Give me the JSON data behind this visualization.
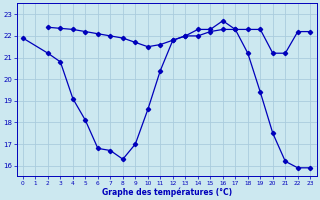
{
  "title": "Graphe des températures (°C)",
  "background_color": "#cce8f0",
  "grid_color": "#aaccdd",
  "line_color": "#0000bb",
  "xlim": [
    -0.5,
    23.5
  ],
  "ylim": [
    15.5,
    23.5
  ],
  "yticks": [
    16,
    17,
    18,
    19,
    20,
    21,
    22,
    23
  ],
  "xticks": [
    0,
    1,
    2,
    3,
    4,
    5,
    6,
    7,
    8,
    9,
    10,
    11,
    12,
    13,
    14,
    15,
    16,
    17,
    18,
    19,
    20,
    21,
    22,
    23
  ],
  "series1_x": [
    0,
    2,
    3,
    4,
    5,
    6,
    7,
    8,
    9,
    10,
    11,
    12,
    13,
    14,
    15,
    16,
    17,
    18,
    19,
    20,
    21,
    22,
    23
  ],
  "series1_y": [
    21.9,
    21.2,
    20.8,
    19.1,
    18.1,
    16.8,
    16.7,
    16.3,
    17.0,
    18.6,
    20.4,
    21.8,
    22.0,
    22.3,
    22.3,
    22.7,
    22.3,
    21.2,
    19.4,
    17.5,
    16.2,
    15.9,
    15.9
  ],
  "series2_x": [
    2,
    3,
    4,
    5,
    6,
    7,
    8,
    9,
    10,
    11,
    12,
    13,
    14,
    15,
    16,
    17,
    18,
    19,
    20,
    21,
    22,
    23
  ],
  "series2_y": [
    22.4,
    22.35,
    22.3,
    22.2,
    22.1,
    22.0,
    21.9,
    21.7,
    21.5,
    21.6,
    21.8,
    22.0,
    22.0,
    22.2,
    22.3,
    22.3,
    22.3,
    22.3,
    21.2,
    21.2,
    22.2,
    22.2
  ]
}
